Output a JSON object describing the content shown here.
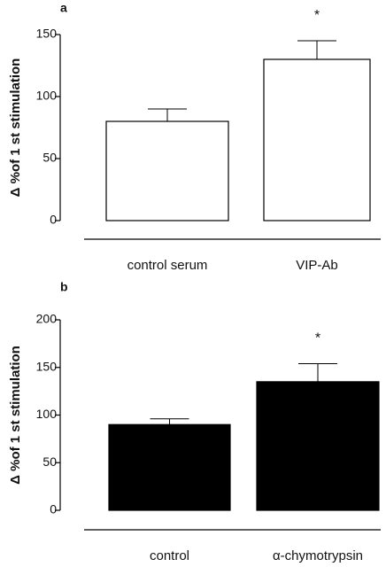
{
  "chart_data": [
    {
      "type": "bar",
      "panel_label": "a",
      "ylabel": "Δ %of 1 st stimulation",
      "categories": [
        "control serum",
        "VIP-Ab"
      ],
      "values": [
        80,
        130
      ],
      "errors": [
        10,
        15
      ],
      "significance": [
        null,
        "*"
      ],
      "color": "#ffffff",
      "ylim": [
        0,
        150
      ],
      "yticks": [
        0,
        50,
        100,
        150
      ]
    },
    {
      "type": "bar",
      "panel_label": "b",
      "ylabel": "Δ %of 1 st stimulation",
      "categories": [
        "control",
        "α-chymotrypsin"
      ],
      "values": [
        90,
        135
      ],
      "errors": [
        6,
        19
      ],
      "significance": [
        null,
        "*"
      ],
      "color": "#000000",
      "ylim": [
        0,
        200
      ],
      "yticks": [
        0,
        50,
        100,
        150,
        200
      ]
    }
  ]
}
